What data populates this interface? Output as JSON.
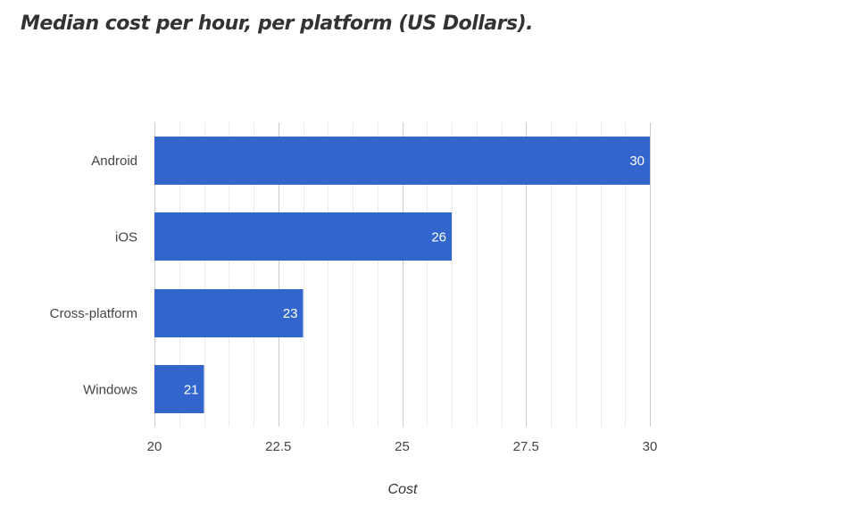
{
  "title": "Median cost per hour, per platform (US Dollars).",
  "chart_data": {
    "type": "bar",
    "orientation": "horizontal",
    "categories": [
      "Android",
      "iOS",
      "Cross-platform",
      "Windows"
    ],
    "values": [
      30,
      26,
      23,
      21
    ],
    "data_labels": [
      "30",
      "26",
      "23",
      "21"
    ],
    "xlabel": "Cost",
    "ylabel": "",
    "xlim": [
      20,
      30
    ],
    "xticks": [
      20,
      22.5,
      25,
      27.5,
      30
    ],
    "xtick_labels": [
      "20",
      "22.5",
      "25",
      "27.5",
      "30"
    ],
    "minor_gridlines_per_major": 5,
    "grid": true,
    "legend": "none",
    "colors": {
      "bar": "#3366cc",
      "major_grid": "#cccccc",
      "minor_grid": "#ebebeb",
      "data_label": "#ffffff"
    }
  }
}
